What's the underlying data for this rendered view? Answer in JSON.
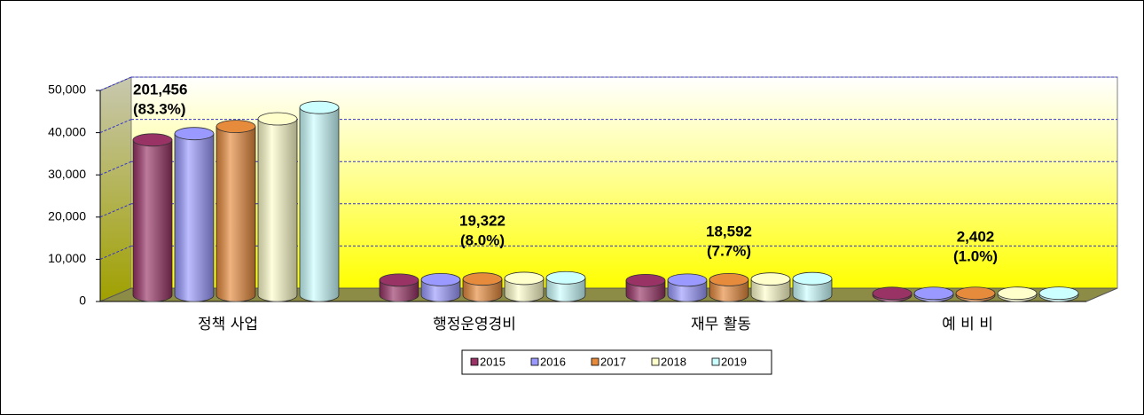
{
  "chart_data": {
    "type": "bar3d",
    "categories": [
      "정책 사업",
      "행정운영경비",
      "재무 활동",
      "예 비 비"
    ],
    "series": [
      {
        "name": "2015",
        "color": "#993366",
        "values": [
          36800,
          3600,
          3500,
          460
        ]
      },
      {
        "name": "2016",
        "color": "#9999ff",
        "values": [
          38300,
          3700,
          3600,
          470
        ]
      },
      {
        "name": "2017",
        "color": "#e68a3c",
        "values": [
          40000,
          3850,
          3700,
          480
        ]
      },
      {
        "name": "2018",
        "color": "#ffffcc",
        "values": [
          41800,
          4000,
          3850,
          490
        ]
      },
      {
        "name": "2019",
        "color": "#ccffff",
        "values": [
          44500,
          4150,
          3950,
          500
        ]
      }
    ],
    "annotations": [
      [
        "201,456",
        "(83.3%)"
      ],
      [
        "19,322",
        "(8.0%)"
      ],
      [
        "18,592",
        "(7.7%)"
      ],
      [
        "2,402",
        "(1.0%)"
      ]
    ],
    "ylim": [
      0,
      50000
    ],
    "yticks": [
      0,
      {
        "value": 10000,
        "label": "10,000"
      },
      {
        "value": 20000,
        "label": "20,000"
      },
      {
        "value": 30000,
        "label": "30,000"
      },
      {
        "value": 40000,
        "label": "40,000"
      },
      {
        "value": 50000,
        "label": "50,000"
      }
    ],
    "grid": true,
    "legend": "bottom"
  }
}
